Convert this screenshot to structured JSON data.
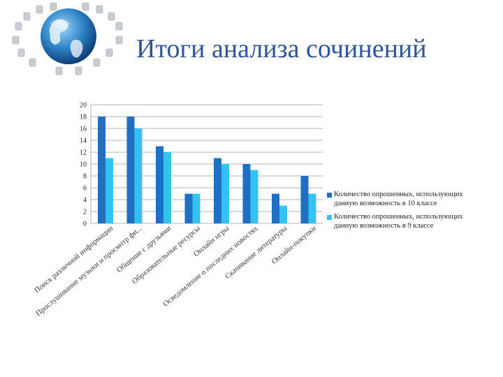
{
  "slide": {
    "title": "Итоги анализа сочинений"
  },
  "colors": {
    "series1": "#1f6fc4",
    "series2": "#33c3f0",
    "title": "#2e5597",
    "grid": "#9a9a9a"
  },
  "chart_data": {
    "type": "bar",
    "ylim": [
      0,
      20
    ],
    "ytick_step": 2,
    "grid": true,
    "legend_position": "right",
    "categories": [
      "Поиск различной информации",
      "Прослушивание музыки и просмотр фи...",
      "Общение с друзьями",
      "Образовательные ресурсы",
      "Онлайн игры",
      "Осведомление о последних новостях",
      "Скачивание литературы",
      "Онлайн-покупки"
    ],
    "series": [
      {
        "name": "Количество опрошенных, использующих данную возможность в 10 классе",
        "values": [
          18,
          18,
          13,
          5,
          11,
          10,
          5,
          8
        ]
      },
      {
        "name": "Количество опрошенных, использующих данную возможность в 9 классе",
        "values": [
          11,
          16,
          12,
          5,
          10,
          9,
          3,
          5
        ]
      }
    ]
  }
}
